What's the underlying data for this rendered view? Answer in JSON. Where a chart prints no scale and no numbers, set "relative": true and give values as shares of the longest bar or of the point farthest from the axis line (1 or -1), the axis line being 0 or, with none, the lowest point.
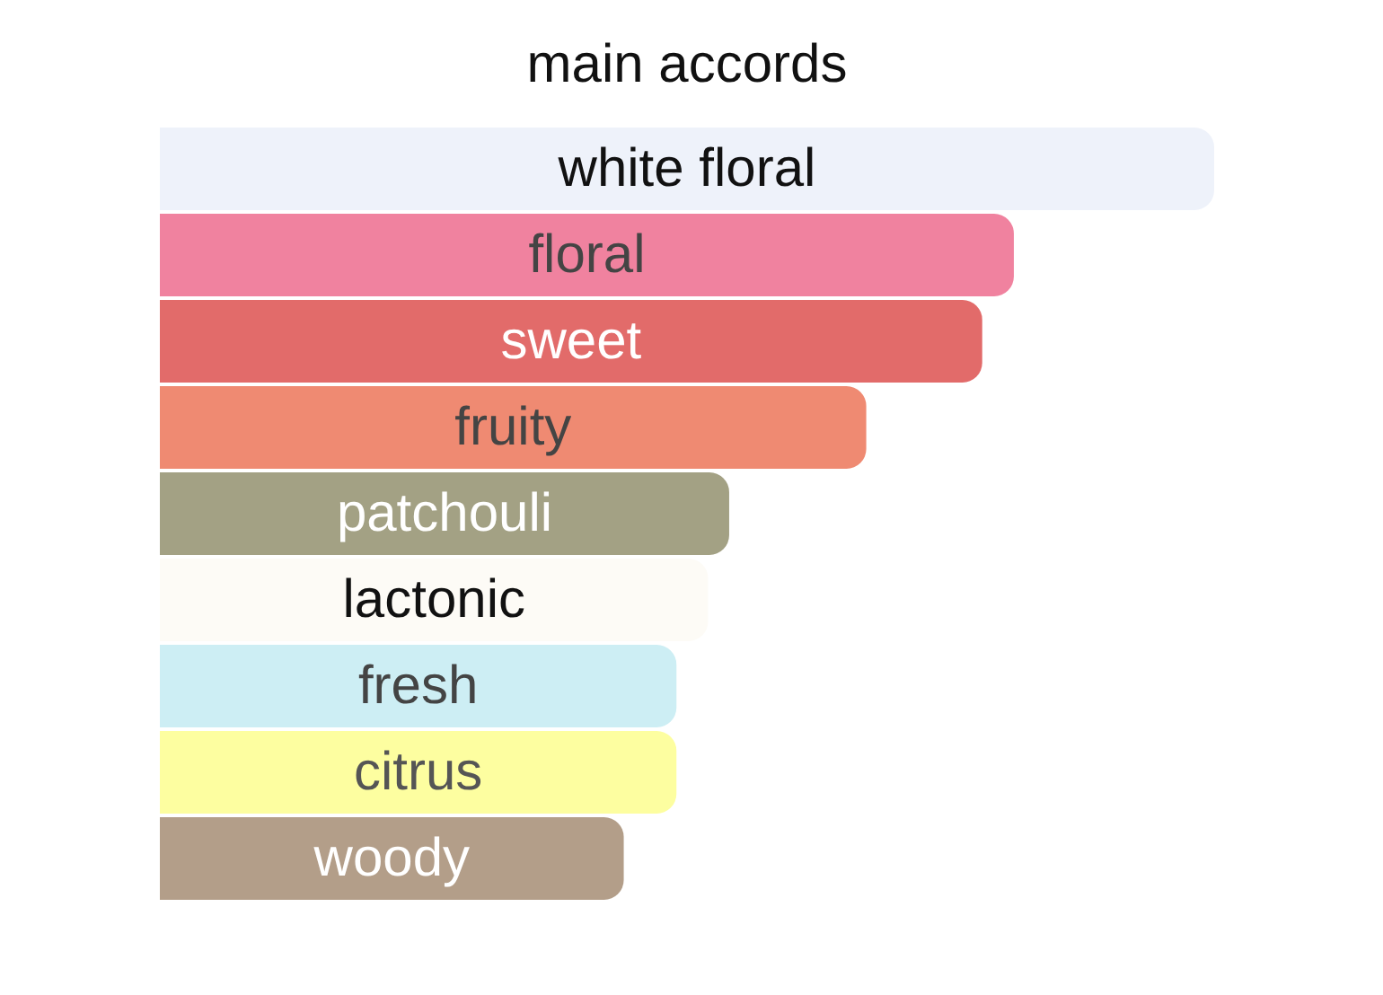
{
  "chart_data": {
    "type": "bar",
    "orientation": "horizontal",
    "relative": true,
    "title": "main accords",
    "categories": [
      "white floral",
      "floral",
      "sweet",
      "fruity",
      "patchouli",
      "lactonic",
      "fresh",
      "citrus",
      "woody"
    ],
    "values": [
      1,
      0.81,
      0.78,
      0.67,
      0.54,
      0.52,
      0.49,
      0.49,
      0.44
    ],
    "colors": [
      "#eef2fa",
      "#f0829f",
      "#e26b6a",
      "#ef8a72",
      "#a3a184",
      "#fdfbf6",
      "#cdeef4",
      "#fdfea0",
      "#b39e89"
    ]
  }
}
